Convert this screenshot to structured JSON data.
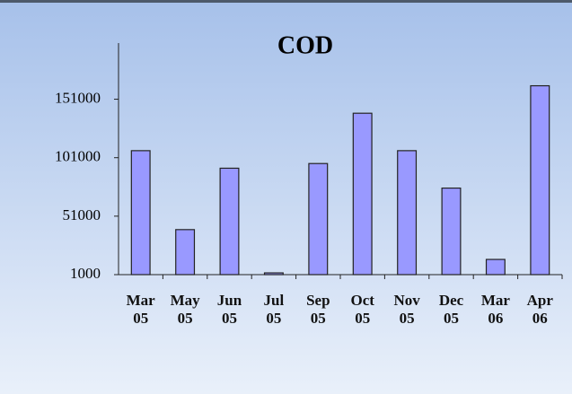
{
  "chart_data": {
    "type": "bar",
    "title": "COD",
    "categories": [
      "Mar 05",
      "May 05",
      "Jun 05",
      "Jul 05",
      "Sep 05",
      "Oct 05",
      "Nov 05",
      "Dec 05",
      "Mar 06",
      "Apr 06"
    ],
    "values": [
      107000,
      39500,
      92000,
      2500,
      96000,
      139000,
      107000,
      75000,
      14000,
      162500
    ],
    "color": "#9999ff",
    "ylim": [
      1000,
      199000
    ],
    "yticks": [
      1000,
      51000,
      101000,
      151000
    ],
    "grid": false
  }
}
